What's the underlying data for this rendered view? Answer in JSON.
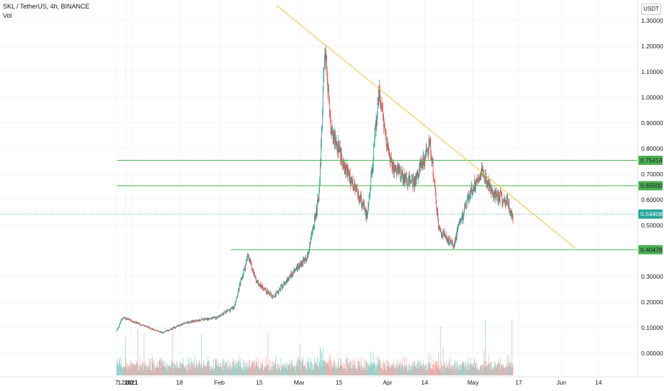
{
  "header": {
    "title": "SKL / TetherUS, 4h, BINANCE",
    "indicator": "Vol",
    "currency": "USDT"
  },
  "colors": {
    "up": "#26a69a",
    "down": "#ef5350",
    "horizontal": "#4caf50",
    "trendline": "#f5c842",
    "grid": "#f0f3fa"
  },
  "chart_data": {
    "type": "candlestick",
    "title": "SKL / TetherUS, 4h, BINANCE",
    "ylim": [
      -0.06,
      1.32
    ],
    "y_ticks": [
      {
        "value": 1.3,
        "label": "1.30000"
      },
      {
        "value": 1.2,
        "label": "1.20000"
      },
      {
        "value": 1.1,
        "label": "1.10000"
      },
      {
        "value": 1.0,
        "label": "1.00000"
      },
      {
        "value": 0.9,
        "label": "0.90000"
      },
      {
        "value": 0.8,
        "label": "0.80000"
      },
      {
        "value": 0.7,
        "label": "0.70000"
      },
      {
        "value": 0.6,
        "label": "0.60000"
      },
      {
        "value": 0.5,
        "label": "0.50000"
      },
      {
        "value": 0.3,
        "label": "0.30000"
      },
      {
        "value": 0.2,
        "label": "0.20000"
      },
      {
        "value": 0.1,
        "label": "0.10000"
      },
      {
        "value": 0.0,
        "label": "0.00000"
      }
    ],
    "x_ticks": [
      {
        "date": "2020-12-27",
        "label": "7",
        "bold": false
      },
      {
        "date": "2020-12-30",
        "label": "12:00",
        "bold": false
      },
      {
        "date": "2021-01-01",
        "label": "2021",
        "bold": true
      },
      {
        "date": "2021-01-18",
        "label": "18",
        "bold": false
      },
      {
        "date": "2021-02-01",
        "label": "Feb",
        "bold": false
      },
      {
        "date": "2021-02-15",
        "label": "15",
        "bold": false
      },
      {
        "date": "2021-03-01",
        "label": "Mar",
        "bold": false
      },
      {
        "date": "2021-03-15",
        "label": "15",
        "bold": false
      },
      {
        "date": "2021-04-01",
        "label": "Apr",
        "bold": false
      },
      {
        "date": "2021-04-14",
        "label": "14",
        "bold": false
      },
      {
        "date": "2021-05-01",
        "label": "May",
        "bold": false
      },
      {
        "date": "2021-05-17",
        "label": "17",
        "bold": false
      },
      {
        "date": "2021-06-01",
        "label": "Jun",
        "bold": false
      },
      {
        "date": "2021-06-14",
        "label": "14",
        "bold": false
      }
    ],
    "price_path": [
      {
        "date": "2020-12-27",
        "price": 0.09
      },
      {
        "date": "2020-12-29",
        "price": 0.14
      },
      {
        "date": "2021-01-05",
        "price": 0.11
      },
      {
        "date": "2021-01-12",
        "price": 0.08
      },
      {
        "date": "2021-01-20",
        "price": 0.12
      },
      {
        "date": "2021-01-31",
        "price": 0.14
      },
      {
        "date": "2021-02-06",
        "price": 0.18
      },
      {
        "date": "2021-02-11",
        "price": 0.38
      },
      {
        "date": "2021-02-14",
        "price": 0.28
      },
      {
        "date": "2021-02-20",
        "price": 0.22
      },
      {
        "date": "2021-02-27",
        "price": 0.32
      },
      {
        "date": "2021-03-04",
        "price": 0.38
      },
      {
        "date": "2021-03-08",
        "price": 0.62
      },
      {
        "date": "2021-03-10",
        "price": 1.2
      },
      {
        "date": "2021-03-12",
        "price": 0.88
      },
      {
        "date": "2021-03-18",
        "price": 0.7
      },
      {
        "date": "2021-03-25",
        "price": 0.54
      },
      {
        "date": "2021-03-29",
        "price": 1.02
      },
      {
        "date": "2021-04-02",
        "price": 0.74
      },
      {
        "date": "2021-04-10",
        "price": 0.66
      },
      {
        "date": "2021-04-16",
        "price": 0.82
      },
      {
        "date": "2021-04-19",
        "price": 0.48
      },
      {
        "date": "2021-04-24",
        "price": 0.42
      },
      {
        "date": "2021-04-29",
        "price": 0.6
      },
      {
        "date": "2021-05-04",
        "price": 0.72
      },
      {
        "date": "2021-05-08",
        "price": 0.62
      },
      {
        "date": "2021-05-13",
        "price": 0.6
      },
      {
        "date": "2021-05-15",
        "price": 0.52
      }
    ],
    "horizontal_levels": [
      {
        "price": 0.75414,
        "label": "0.75414",
        "from_date": "2020-12-27"
      },
      {
        "price": 0.655,
        "label": "0.65500",
        "from_date": "2020-12-27"
      },
      {
        "price": 0.40476,
        "label": "0.40476",
        "from_date": "2021-02-05"
      }
    ],
    "current_price": {
      "price": 0.54408,
      "label": "0.54408"
    },
    "trendline": {
      "start": {
        "date": "2021-02-21",
        "price": 1.36
      },
      "end": {
        "date": "2021-06-06",
        "price": 0.41
      }
    }
  }
}
